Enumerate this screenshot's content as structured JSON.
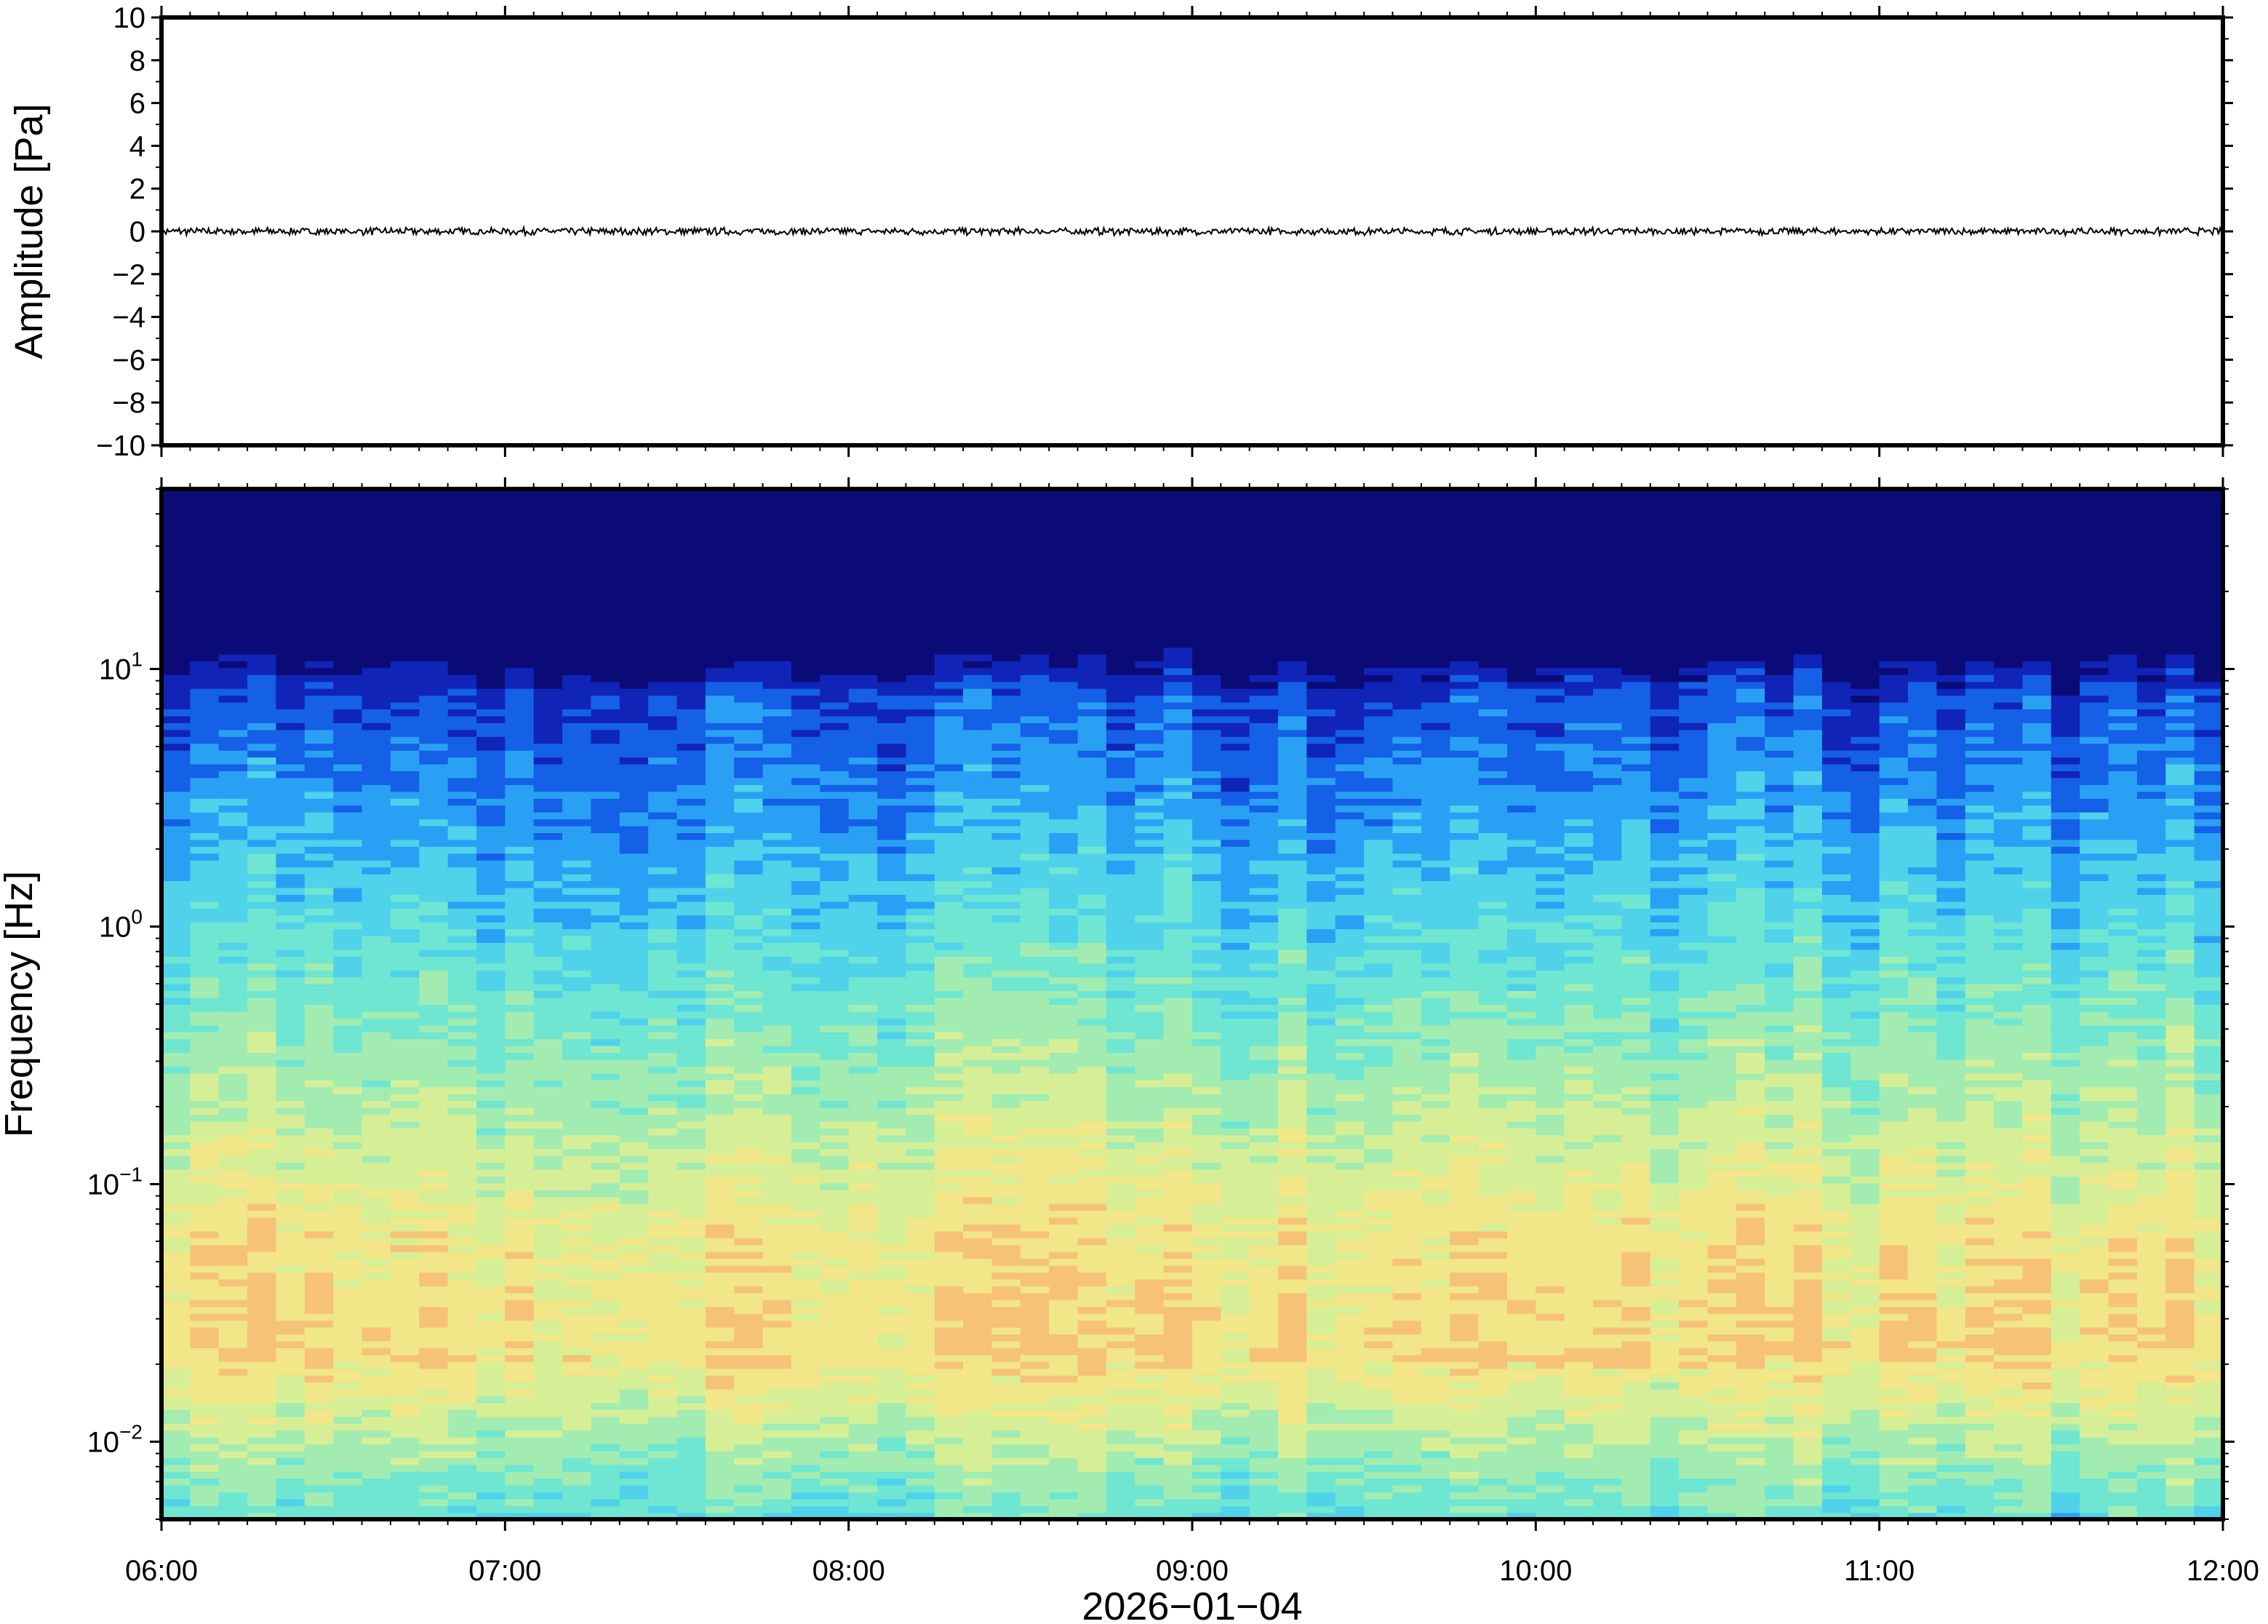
{
  "chart_data": [
    {
      "type": "line",
      "title": "",
      "ylabel": "Amplitude [Pa]",
      "ylim": [
        -10,
        10
      ],
      "yticks": [
        "10",
        "8",
        "6",
        "4",
        "2",
        "0",
        "−2",
        "−4",
        "−6",
        "−8",
        "−10"
      ],
      "yvalues": [
        10,
        8,
        6,
        4,
        2,
        0,
        -2,
        -4,
        -6,
        -8,
        -10
      ],
      "series": [
        {
          "description_of_signal": "near-zero waveform",
          "values": [
            0.02,
            -0.03,
            0.05,
            -0.04,
            0.03,
            -0.02,
            0.04,
            -0.05,
            0.02,
            -0.01
          ]
        }
      ],
      "line_color": "#000000"
    },
    {
      "type": "heatmap",
      "ylabel": "Frequency [Hz]",
      "yscale": "log",
      "ylim": [
        0.005,
        50
      ],
      "yticks": [
        {
          "value": 10,
          "base": "10",
          "exp": "1"
        },
        {
          "value": 1,
          "base": "10",
          "exp": "0"
        },
        {
          "value": 0.1,
          "base": "10",
          "exp": "−1"
        },
        {
          "value": 0.01,
          "base": "10",
          "exp": "−2"
        }
      ],
      "xlabel": "2026−01−04",
      "xticks": [
        "06:00",
        "07:00",
        "08:00",
        "09:00",
        "10:00",
        "11:00",
        "12:00"
      ],
      "xlim": [
        "06:00",
        "12:00"
      ],
      "colormap": [
        "#0b0b78",
        "#1024b8",
        "#1460e6",
        "#2aa0f5",
        "#4fd2ea",
        "#6ee6d2",
        "#a2ecb2",
        "#d6ef96",
        "#f1e688",
        "#f6c278"
      ]
    }
  ]
}
